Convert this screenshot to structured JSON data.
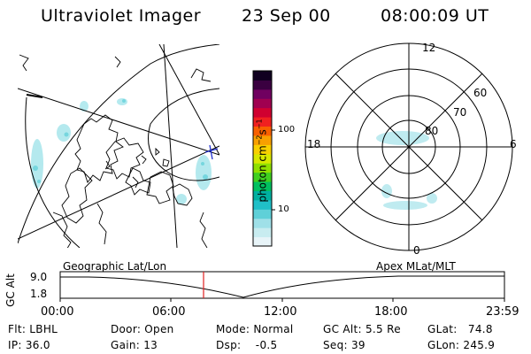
{
  "header": {
    "instrument": "Ultraviolet Imager",
    "date": "23 Sep 00",
    "time": "08:00:09 UT"
  },
  "colorbar": {
    "unit_label": "photon cm",
    "unit_exp1": "−2",
    "unit_s": "s",
    "unit_exp2": "−1",
    "ticks": [
      "100",
      "10"
    ],
    "colors": [
      "#e8f4f8",
      "#c8ecf0",
      "#9fe0e8",
      "#5fd0d8",
      "#20c0c8",
      "#00b0a0",
      "#00c060",
      "#40d020",
      "#90e000",
      "#d8e800",
      "#f8d000",
      "#f8a000",
      "#f86000",
      "#f02020",
      "#d00030",
      "#a00050",
      "#700060",
      "#3a0040",
      "#100020"
    ]
  },
  "polar": {
    "mlt_labels": {
      "top": "12",
      "left": "18",
      "right": "6",
      "bottom": "0"
    },
    "lat_labels": [
      "60",
      "70",
      "80"
    ]
  },
  "timeline": {
    "left_title": "Geographic Lat/Lon",
    "right_title": "Apex MLat/MLT",
    "y_axis_label": "GC Alt",
    "y_ticks": [
      "9.0",
      "1.8"
    ],
    "x_ticks": [
      "00:00",
      "06:00",
      "12:00",
      "18:00",
      "23:59"
    ],
    "current_marker_color": "#e02020"
  },
  "info": {
    "flt": "Flt: LBHL",
    "ip": "IP: 36.0",
    "door": "Door: Open",
    "gain": "Gain: 13",
    "mode": "Mode: Normal",
    "dsp": "Dsp:    -0.5",
    "gcalt": "GC Alt: 5.5 Re",
    "seq": "Seq: 39",
    "glat": "GLat:   74.8",
    "glon": "GLon: 245.9"
  }
}
